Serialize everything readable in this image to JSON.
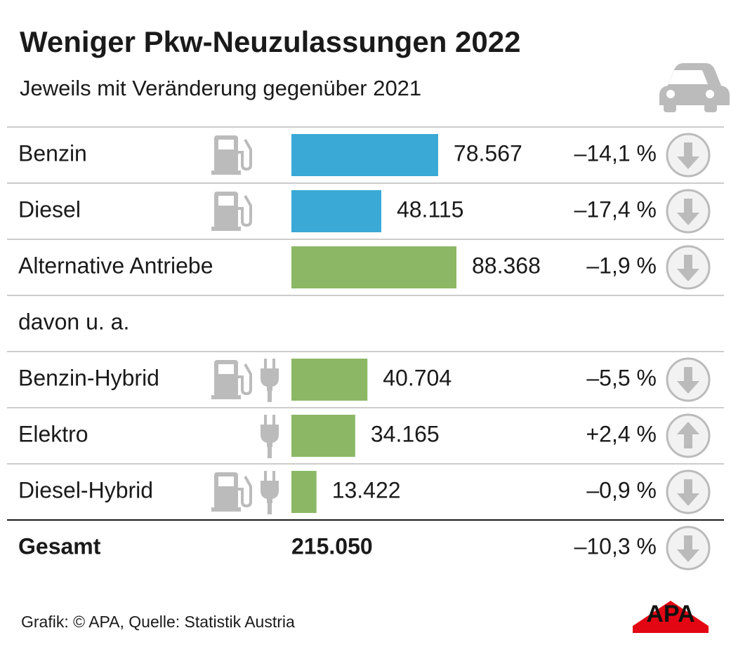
{
  "chart_data": {
    "type": "bar",
    "title": "Weniger Pkw-Neuzulassungen 2022",
    "subtitle": "Jeweils mit Veränderung gegenüber 2021",
    "categories": [
      "Benzin",
      "Diesel",
      "Alternative Antriebe",
      "davon u. a.",
      "Benzin-Hybrid",
      "Elektro",
      "Diesel-Hybrid"
    ],
    "values": [
      78567,
      48115,
      88368,
      null,
      40704,
      34165,
      13422
    ],
    "value_labels": [
      "78.567",
      "48.115",
      "88.368",
      null,
      "40.704",
      "34.165",
      "13.422"
    ],
    "changes": [
      -14.1,
      -17.4,
      -1.9,
      null,
      -5.5,
      2.4,
      -0.9
    ],
    "change_labels": [
      "–14,1 %",
      "–17,4 %",
      "–1,9 %",
      null,
      "–5,5 %",
      "+2,4 %",
      "–0,9 %"
    ],
    "colors": [
      "#3aa9d6",
      "#3aa9d6",
      "#8cb865",
      null,
      "#8cb865",
      "#8cb865",
      "#8cb865"
    ],
    "total": {
      "label": "Gesamt",
      "value": 215050,
      "value_label": "215.050",
      "change": -10.3,
      "change_label": "–10,3 %"
    },
    "source": "Grafik: © APA, Quelle: Statistik Austria",
    "logo": "APA"
  }
}
